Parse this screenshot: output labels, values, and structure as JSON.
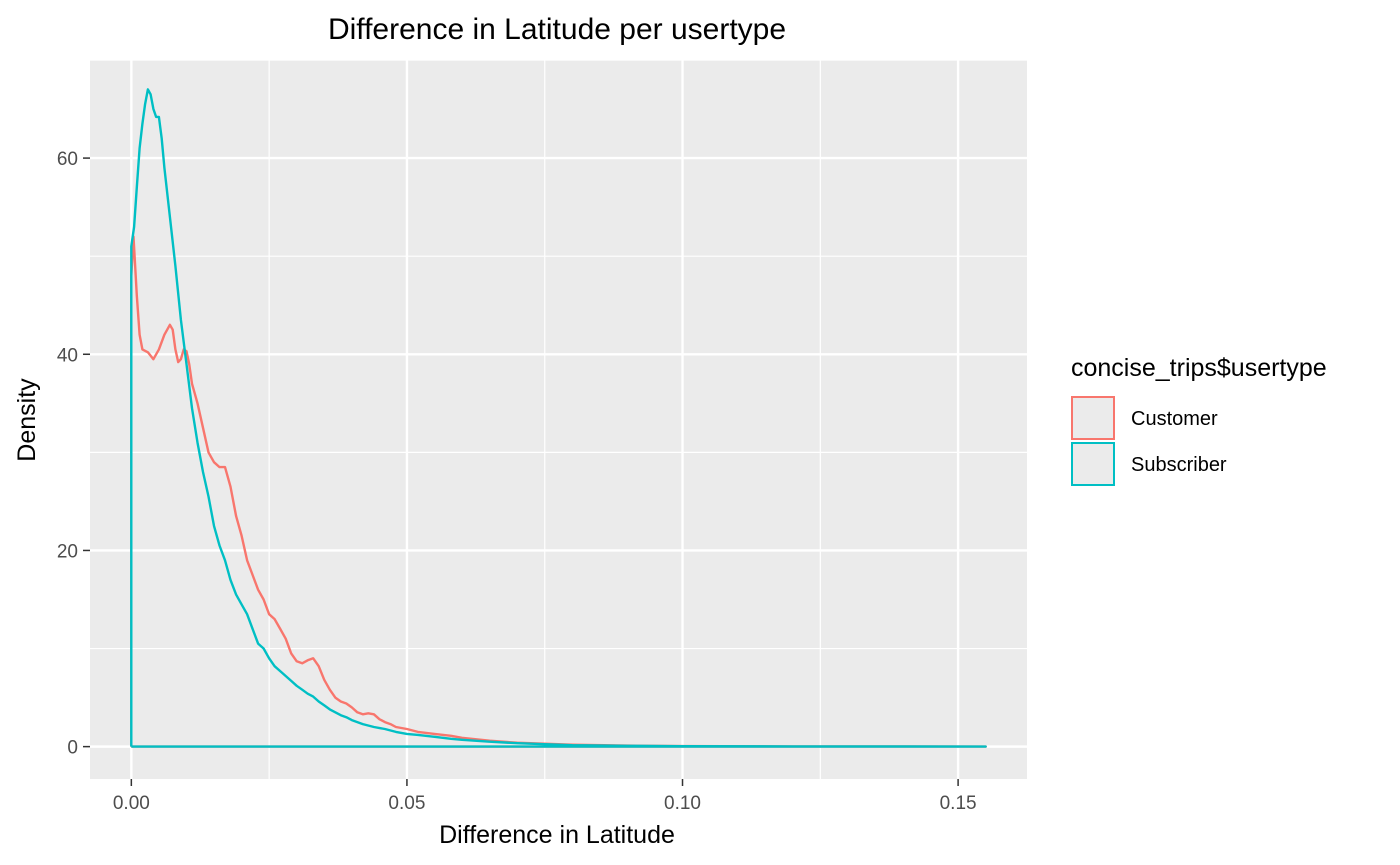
{
  "chart_data": {
    "type": "line",
    "title": "Difference in Latitude per usertype",
    "xlabel": "Difference in Latitude",
    "ylabel": "Density",
    "xlim": [
      -0.0075,
      0.1625
    ],
    "ylim": [
      -3.3,
      70
    ],
    "x_ticks": [
      0.0,
      0.05,
      0.1,
      0.15
    ],
    "x_tick_labels": [
      "0.00",
      "0.05",
      "0.10",
      "0.15"
    ],
    "y_ticks": [
      0,
      20,
      40,
      60
    ],
    "y_tick_labels": [
      "0",
      "20",
      "40",
      "60"
    ],
    "grid": true,
    "legend": {
      "title": "concise_trips$usertype",
      "placement": "right",
      "items": [
        "Customer",
        "Subscriber"
      ]
    },
    "series": [
      {
        "name": "Customer",
        "color": "#f8766d",
        "points": [
          [
            0,
            0
          ],
          [
            0,
            48
          ],
          [
            0.0004,
            52
          ],
          [
            0.001,
            46
          ],
          [
            0.0015,
            42
          ],
          [
            0.002,
            40.5
          ],
          [
            0.003,
            40.2
          ],
          [
            0.004,
            39.5
          ],
          [
            0.005,
            40.5
          ],
          [
            0.006,
            42
          ],
          [
            0.007,
            43
          ],
          [
            0.0075,
            42.5
          ],
          [
            0.008,
            40.5
          ],
          [
            0.0085,
            39.2
          ],
          [
            0.009,
            39.5
          ],
          [
            0.0095,
            40.5
          ],
          [
            0.01,
            40.3
          ],
          [
            0.0105,
            39
          ],
          [
            0.011,
            37
          ],
          [
            0.012,
            35
          ],
          [
            0.013,
            32.5
          ],
          [
            0.014,
            30
          ],
          [
            0.015,
            29
          ],
          [
            0.016,
            28.5
          ],
          [
            0.017,
            28.5
          ],
          [
            0.018,
            26.5
          ],
          [
            0.019,
            23.5
          ],
          [
            0.02,
            21.5
          ],
          [
            0.021,
            19
          ],
          [
            0.022,
            17.5
          ],
          [
            0.023,
            16
          ],
          [
            0.024,
            15
          ],
          [
            0.025,
            13.5
          ],
          [
            0.026,
            13
          ],
          [
            0.027,
            12
          ],
          [
            0.028,
            11
          ],
          [
            0.029,
            9.5
          ],
          [
            0.03,
            8.7
          ],
          [
            0.031,
            8.5
          ],
          [
            0.032,
            8.8
          ],
          [
            0.033,
            9
          ],
          [
            0.034,
            8.2
          ],
          [
            0.035,
            6.8
          ],
          [
            0.036,
            5.8
          ],
          [
            0.037,
            5
          ],
          [
            0.038,
            4.6
          ],
          [
            0.039,
            4.4
          ],
          [
            0.04,
            4
          ],
          [
            0.041,
            3.5
          ],
          [
            0.042,
            3.3
          ],
          [
            0.043,
            3.4
          ],
          [
            0.044,
            3.3
          ],
          [
            0.045,
            2.8
          ],
          [
            0.046,
            2.5
          ],
          [
            0.047,
            2.3
          ],
          [
            0.048,
            2
          ],
          [
            0.05,
            1.8
          ],
          [
            0.052,
            1.5
          ],
          [
            0.055,
            1.3
          ],
          [
            0.058,
            1.1
          ],
          [
            0.06,
            0.9
          ],
          [
            0.065,
            0.6
          ],
          [
            0.07,
            0.4
          ],
          [
            0.075,
            0.3
          ],
          [
            0.08,
            0.2
          ],
          [
            0.09,
            0.1
          ],
          [
            0.1,
            0.05
          ],
          [
            0.12,
            0.02
          ],
          [
            0.14,
            0.01
          ],
          [
            0.155,
            0
          ],
          [
            0,
            0
          ]
        ]
      },
      {
        "name": "Subscriber",
        "color": "#00bfc4",
        "points": [
          [
            0,
            0
          ],
          [
            0,
            51
          ],
          [
            0.0005,
            53
          ],
          [
            0.001,
            57
          ],
          [
            0.0015,
            61
          ],
          [
            0.002,
            63.5
          ],
          [
            0.0025,
            65.5
          ],
          [
            0.003,
            67
          ],
          [
            0.0035,
            66.5
          ],
          [
            0.004,
            65
          ],
          [
            0.0045,
            64.2
          ],
          [
            0.005,
            64.2
          ],
          [
            0.0055,
            62
          ],
          [
            0.006,
            59
          ],
          [
            0.007,
            54
          ],
          [
            0.008,
            49
          ],
          [
            0.009,
            43.5
          ],
          [
            0.01,
            39
          ],
          [
            0.011,
            34.5
          ],
          [
            0.012,
            31
          ],
          [
            0.013,
            28
          ],
          [
            0.014,
            25.5
          ],
          [
            0.015,
            22.5
          ],
          [
            0.016,
            20.5
          ],
          [
            0.017,
            19
          ],
          [
            0.018,
            17
          ],
          [
            0.019,
            15.5
          ],
          [
            0.02,
            14.5
          ],
          [
            0.021,
            13.5
          ],
          [
            0.022,
            12
          ],
          [
            0.023,
            10.5
          ],
          [
            0.024,
            10
          ],
          [
            0.025,
            9
          ],
          [
            0.026,
            8.2
          ],
          [
            0.027,
            7.7
          ],
          [
            0.028,
            7.2
          ],
          [
            0.029,
            6.7
          ],
          [
            0.03,
            6.2
          ],
          [
            0.031,
            5.8
          ],
          [
            0.032,
            5.4
          ],
          [
            0.033,
            5.1
          ],
          [
            0.034,
            4.6
          ],
          [
            0.035,
            4.2
          ],
          [
            0.036,
            3.8
          ],
          [
            0.037,
            3.5
          ],
          [
            0.038,
            3.2
          ],
          [
            0.039,
            3
          ],
          [
            0.04,
            2.7
          ],
          [
            0.042,
            2.3
          ],
          [
            0.044,
            2
          ],
          [
            0.046,
            1.8
          ],
          [
            0.048,
            1.5
          ],
          [
            0.05,
            1.3
          ],
          [
            0.052,
            1.2
          ],
          [
            0.055,
            1
          ],
          [
            0.058,
            0.8
          ],
          [
            0.06,
            0.7
          ],
          [
            0.065,
            0.5
          ],
          [
            0.07,
            0.35
          ],
          [
            0.075,
            0.25
          ],
          [
            0.08,
            0.15
          ],
          [
            0.09,
            0.08
          ],
          [
            0.1,
            0.04
          ],
          [
            0.12,
            0.02
          ],
          [
            0.14,
            0.01
          ],
          [
            0.155,
            0
          ],
          [
            0,
            0
          ]
        ]
      }
    ]
  }
}
